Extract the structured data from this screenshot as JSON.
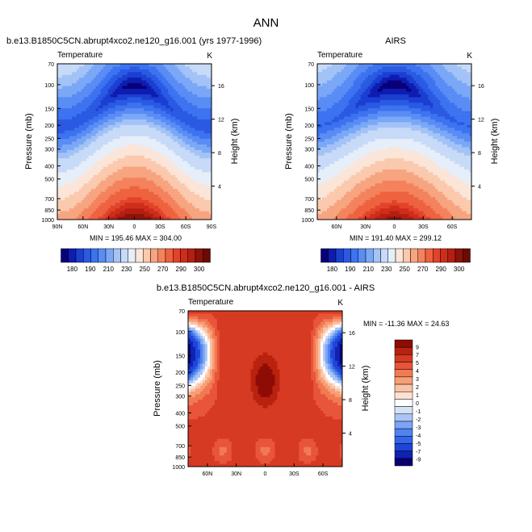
{
  "figure_title": "ANN",
  "colors": {
    "temperature_levels": [
      "#08007a",
      "#0e1cb0",
      "#1a3fd1",
      "#2a5ae3",
      "#3d73f0",
      "#5a8cf5",
      "#7aa8f7",
      "#a3c3f7",
      "#c7daf7",
      "#e6eef9",
      "#fbe5d8",
      "#fbc9ad",
      "#f7a480",
      "#f4825d",
      "#ee6240",
      "#e2432a",
      "#cf2d1b",
      "#b41f12",
      "#8e1209",
      "#6b0b06"
    ],
    "difference_levels": [
      "#08006e",
      "#0f22b3",
      "#1f45d8",
      "#3366e8",
      "#4f83f0",
      "#7ba4f4",
      "#a9c4f6",
      "#d3e2f7",
      "#ffffff",
      "#fde2d2",
      "#fbc2a3",
      "#f69f77",
      "#f27a53",
      "#e8553a",
      "#d63a22",
      "#b8220f",
      "#8e0c05"
    ]
  },
  "chart_data": [
    {
      "type": "heatmap",
      "id": "model",
      "title": "b.e13.B1850C5CN.abrupt4xco2.ne120_g16.001 (yrs 1977-1996)",
      "variable": "Temperature",
      "units": "K",
      "xlabel": "",
      "ylabel": "Pressure (mb)",
      "right_label": "Height (km)",
      "xticks": [
        "90N",
        "60N",
        "30N",
        "0",
        "30S",
        "60S",
        "90S"
      ],
      "xtick_lats": [
        90,
        60,
        30,
        0,
        -30,
        -60,
        -90
      ],
      "xlim_lat": [
        90,
        -90
      ],
      "yticks": [
        "70",
        "100",
        "150",
        "200",
        "250",
        "300",
        "400",
        "500",
        "700",
        "850",
        "1000"
      ],
      "ytick_values": [
        70,
        100,
        150,
        200,
        250,
        300,
        400,
        500,
        700,
        850,
        1000
      ],
      "ylim": [
        70,
        1000
      ],
      "height_ticks": [
        "4",
        "8",
        "12",
        "16"
      ],
      "height_values": [
        4,
        8,
        12,
        16
      ],
      "min": 195.46,
      "max": 304.0,
      "stats": "MIN = 195.46  MAX = 304.00",
      "colorbar_labels": [
        "180",
        "190",
        "210",
        "230",
        "250",
        "270",
        "290",
        "300"
      ],
      "colorbar_levels": [
        175,
        180,
        185,
        190,
        195,
        200,
        205,
        210,
        220,
        230,
        240,
        250,
        260,
        270,
        280,
        285,
        290,
        295,
        300,
        305
      ],
      "field": {
        "surface_eq": 301,
        "surface_pole": 255,
        "lapse_eq": 56,
        "lapse_pole": 44,
        "trop_eq": 194,
        "trop_pole": 216
      }
    },
    {
      "type": "heatmap",
      "id": "airs",
      "title": "AIRS",
      "variable": "Temperature",
      "units": "K",
      "xlabel": "",
      "ylabel": "Pressure (mb)",
      "right_label": "Height (km)",
      "xticks": [
        "60N",
        "30N",
        "0",
        "30S",
        "60S"
      ],
      "xtick_lats": [
        60,
        30,
        0,
        -30,
        -60
      ],
      "xlim_lat": [
        80,
        -80
      ],
      "yticks": [
        "70",
        "100",
        "150",
        "200",
        "250",
        "300",
        "400",
        "500",
        "700",
        "850",
        "1000"
      ],
      "ytick_values": [
        70,
        100,
        150,
        200,
        250,
        300,
        400,
        500,
        700,
        850,
        1000
      ],
      "ylim": [
        70,
        1000
      ],
      "height_ticks": [
        "4",
        "8",
        "12",
        "16"
      ],
      "height_values": [
        4,
        8,
        12,
        16
      ],
      "min": 191.4,
      "max": 299.12,
      "stats": "MIN = 191.40  MAX = 299.12",
      "colorbar_labels": [
        "180",
        "190",
        "210",
        "230",
        "250",
        "270",
        "290",
        "300"
      ],
      "colorbar_levels": [
        175,
        180,
        185,
        190,
        195,
        200,
        205,
        210,
        220,
        230,
        240,
        250,
        260,
        270,
        280,
        285,
        290,
        295,
        300,
        305
      ],
      "field": {
        "surface_eq": 297,
        "surface_pole": 252,
        "lapse_eq": 55,
        "lapse_pole": 40,
        "trop_eq": 193,
        "trop_pole": 214
      }
    },
    {
      "type": "heatmap",
      "id": "diff",
      "title": "b.e13.B1850C5CN.abrupt4xco2.ne120_g16.001 - AIRS",
      "variable": "Temperature",
      "units": "K",
      "xlabel": "",
      "ylabel": "Pressure (mb)",
      "right_label": "Height (km)",
      "xticks": [
        "60N",
        "30N",
        "0",
        "30S",
        "60S"
      ],
      "xtick_lats": [
        60,
        30,
        0,
        -30,
        -60
      ],
      "xlim_lat": [
        80,
        -80
      ],
      "yticks": [
        "70",
        "100",
        "150",
        "200",
        "250",
        "300",
        "400",
        "500",
        "700",
        "850",
        "1000"
      ],
      "ytick_values": [
        70,
        100,
        150,
        200,
        250,
        300,
        400,
        500,
        700,
        850,
        1000
      ],
      "ylim": [
        70,
        1000
      ],
      "height_ticks": [
        "4",
        "8",
        "12",
        "16"
      ],
      "height_values": [
        4,
        8,
        12,
        16
      ],
      "min": -11.36,
      "max": 24.63,
      "stats": "MIN = -11.36  MAX =  24.63",
      "colorbar_labels": [
        "9",
        "7",
        "5",
        "4",
        "3",
        "2",
        "1",
        "0",
        "-1",
        "-2",
        "-3",
        "-4",
        "-5",
        "-7",
        "-9"
      ],
      "colorbar_levels": [
        -9,
        -7,
        -5,
        -4,
        -3,
        -2,
        -1,
        0,
        1,
        2,
        3,
        4,
        5,
        7,
        9
      ]
    }
  ]
}
